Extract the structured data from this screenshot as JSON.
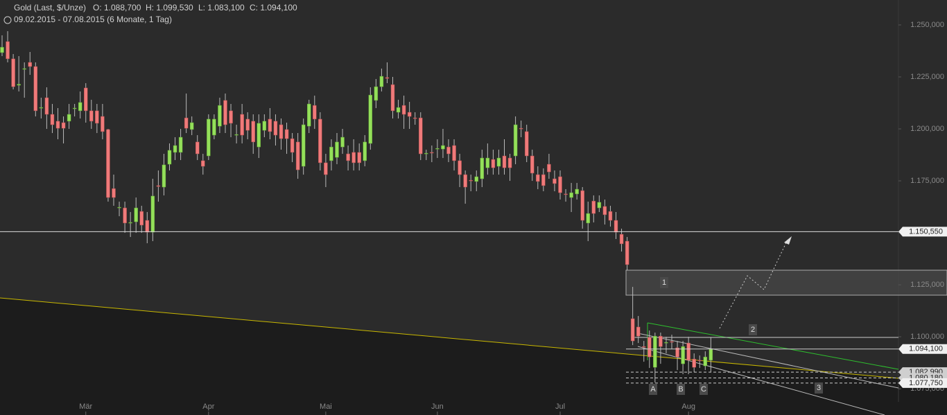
{
  "chart_data": {
    "type": "candlestick",
    "title": "Gold (Last, $/Unze)",
    "quote": [
      "O: 1.088,700",
      "H: 1.099,530",
      "L: 1.083,100",
      "C: 1.094,100"
    ],
    "subtitle": "09.02.2015 - 07.08.2015 (6 Monate, 1 Tag)",
    "categories": [
      null,
      null,
      null,
      null,
      null,
      null,
      null,
      null,
      null,
      null,
      null,
      null,
      null,
      null,
      null,
      "Mär",
      null,
      null,
      null,
      null,
      null,
      null,
      null,
      null,
      null,
      null,
      null,
      null,
      null,
      null,
      null,
      null,
      null,
      null,
      null,
      null,
      null,
      "Apr",
      null,
      null,
      null,
      null,
      null,
      null,
      null,
      null,
      null,
      null,
      null,
      null,
      null,
      null,
      null,
      null,
      null,
      null,
      null,
      null,
      "Mai",
      null,
      null,
      null,
      null,
      null,
      null,
      null,
      null,
      null,
      null,
      null,
      null,
      null,
      null,
      null,
      null,
      null,
      null,
      null,
      "Jun",
      null,
      null,
      null,
      null,
      null,
      null,
      null,
      null,
      null,
      null,
      null,
      null,
      null,
      null,
      null,
      null,
      null,
      null,
      null,
      null,
      null,
      "Jul",
      null,
      null,
      null,
      null,
      null,
      null,
      null,
      null,
      null,
      null,
      null,
      null,
      null,
      null,
      null,
      null,
      null,
      null,
      null,
      null,
      null,
      null,
      "Aug",
      null,
      null,
      null,
      null
    ],
    "open": [
      1236.7,
      1242,
      1233.7,
      1221,
      1228.7,
      1232,
      1230,
      1210,
      1215,
      1207,
      1203.7,
      1203,
      1203.7,
      1209.7,
      1208.7,
      1219.7,
      1208.7,
      1208.7,
      1206,
      1199.7,
      1171.3,
      1162,
      1162,
      1154.7,
      1155.3,
      1160.3,
      1156,
      1150.3,
      1172.7,
      1172,
      1183,
      1188.7,
      1188.7,
      1205.3,
      1199.7,
      1193.7,
      1184.7,
      1187,
      1197,
      1201.3,
      1213.7,
      1208.7,
      1197,
      1207,
      1204.7,
      1203.7,
      1191.3,
      1199.3,
      1204.7,
      1203.7,
      1202,
      1199.7,
      1195.3,
      1193.7,
      1182,
      1201.3,
      1211.3,
      1204.7,
      1183.7,
      1184.7,
      1186.3,
      1191.3,
      1188,
      1188.7,
      1188.7,
      1184.7,
      1193,
      1213.7,
      1220.3,
      1224.7,
      1221.3,
      1208,
      1211.3,
      1208,
      1205.3,
      1205.3,
      1188,
      1188.7,
      1190.3,
      1190.3,
      1191.3,
      1192,
      1184.7,
      1178,
      1175.3,
      1174.7,
      1176,
      1181.3,
      1185.3,
      1182,
      1187,
      1186,
      1187,
      1200.3,
      1198.7,
      1187,
      1178,
      1178,
      1183,
      1176,
      1177,
      1168.7,
      1167,
      1168.7,
      1170.3,
      1154.7,
      1165.3,
      1162,
      1162.7,
      1160.3,
      1156,
      1149.3,
      1146,
      1108.7,
      1104.7,
      1095.3,
      1099.7,
      1085.3,
      1100.3,
      1097,
      1097.7,
      1094.7,
      1087,
      1097,
      1089.3,
      1088.7,
      1086,
      1088.7
    ],
    "high": [
      1245,
      1247,
      1236,
      1235,
      1232,
      1237,
      1232,
      1215,
      1220,
      1212,
      1210,
      1206,
      1212,
      1212,
      1218,
      1222,
      1214,
      1212,
      1212,
      1200,
      1178,
      1165,
      1165,
      1160,
      1167,
      1163,
      1160,
      1176,
      1180,
      1188,
      1193,
      1196,
      1200,
      1217,
      1206,
      1197,
      1188,
      1207,
      1207,
      1215,
      1217,
      1212,
      1202,
      1212,
      1208,
      1207,
      1207,
      1207,
      1210,
      1207,
      1205,
      1203,
      1198,
      1198,
      1205,
      1214,
      1216,
      1208,
      1188,
      1195,
      1198,
      1200,
      1192,
      1195,
      1193,
      1197,
      1220,
      1224,
      1229,
      1232,
      1225,
      1214,
      1216,
      1213,
      1208,
      1208,
      1190,
      1192,
      1195,
      1200,
      1195,
      1195,
      1188,
      1180,
      1178,
      1180,
      1190,
      1193,
      1190,
      1190,
      1195,
      1188,
      1206,
      1204,
      1202,
      1190,
      1182,
      1181,
      1188,
      1180,
      1180,
      1171,
      1174,
      1174,
      1172,
      1165,
      1168,
      1168,
      1166,
      1163,
      1160,
      1152,
      1148,
      1124,
      1110,
      1098,
      1103,
      1102,
      1102,
      1100,
      1101,
      1098,
      1098,
      1100,
      1092,
      1091,
      1093,
      1099.53
    ],
    "low": [
      1235,
      1232,
      1219,
      1218,
      1215,
      1226,
      1206,
      1205,
      1200,
      1198,
      1195,
      1193,
      1200,
      1206,
      1205,
      1203,
      1200,
      1198,
      1195,
      1165,
      1163,
      1158,
      1150,
      1148,
      1150,
      1150,
      1145,
      1146,
      1165,
      1168,
      1180,
      1185,
      1185,
      1198,
      1197,
      1185,
      1178,
      1185,
      1195,
      1198,
      1198,
      1196,
      1193,
      1193,
      1195,
      1188,
      1186,
      1196,
      1195,
      1192,
      1190,
      1188,
      1184,
      1176,
      1178,
      1198,
      1200,
      1180,
      1172,
      1180,
      1183,
      1188,
      1180,
      1180,
      1180,
      1182,
      1190,
      1210,
      1218,
      1222,
      1205,
      1205,
      1200,
      1200,
      1202,
      1185,
      1185,
      1184,
      1186,
      1186,
      1184,
      1180,
      1172,
      1164,
      1170,
      1170,
      1172,
      1178,
      1178,
      1178,
      1178,
      1175,
      1183,
      1196,
      1184,
      1175,
      1171,
      1170,
      1176,
      1170,
      1166,
      1165,
      1160,
      1166,
      1152,
      1146,
      1155,
      1160,
      1154,
      1153,
      1147,
      1141,
      1132,
      1096,
      1097,
      1088,
      1085,
      1078,
      1087,
      1092,
      1094,
      1084,
      1082,
      1082,
      1083,
      1085,
      1084,
      1083.1
    ],
    "close": [
      1239.3,
      1233.7,
      1220.3,
      1221.5,
      1229,
      1230,
      1208.7,
      1210.3,
      1207,
      1202,
      1200.3,
      1200.3,
      1207,
      1210,
      1212.7,
      1208.7,
      1203.7,
      1202.7,
      1198.7,
      1167,
      1167,
      1162.3,
      1154.7,
      1155,
      1162,
      1153.7,
      1150.3,
      1167.7,
      1172.3,
      1182.7,
      1189.7,
      1192,
      1196,
      1200.3,
      1203,
      1188,
      1182,
      1204.7,
      1204.7,
      1211.3,
      1202,
      1202.7,
      1197.3,
      1197,
      1199.3,
      1193.7,
      1202.7,
      1203.7,
      1198.7,
      1197,
      1195.3,
      1195.3,
      1188.7,
      1180.3,
      1202,
      1212,
      1204.7,
      1183.7,
      1178,
      1191.3,
      1193.7,
      1196,
      1184.7,
      1183.7,
      1183.7,
      1193.7,
      1216.3,
      1220.3,
      1225.3,
      1224.3,
      1208.7,
      1210.3,
      1207,
      1206,
      1205,
      1188,
      1188.3,
      1188.5,
      1190.6,
      1192,
      1188,
      1184.7,
      1178,
      1172,
      1175,
      1177,
      1186,
      1186,
      1181.3,
      1186,
      1181.3,
      1181.3,
      1202,
      1200,
      1187,
      1178.7,
      1174.7,
      1172.7,
      1179.3,
      1173.7,
      1169.3,
      1168.5,
      1169.3,
      1171,
      1156,
      1159.3,
      1159.3,
      1164.7,
      1158.7,
      1156,
      1150.3,
      1144.7,
      1134.7,
      1098,
      1100.3,
      1095,
      1090.3,
      1100.3,
      1095.3,
      1097.3,
      1097.5,
      1090.3,
      1095.3,
      1088.7,
      1085.3,
      1088.5,
      1090.3,
      1094.1
    ],
    "up_color": "#94e05a",
    "down_color": "#f07a7a",
    "ylim": [
      1068.7,
      1262
    ],
    "yticks": [
      {
        "value": 1075,
        "label": "1.075,000"
      },
      {
        "value": 1100,
        "label": "1.100,000"
      },
      {
        "value": 1125,
        "label": "1.125,000"
      },
      {
        "value": 1150,
        "label": "1.150,000"
      },
      {
        "value": 1175,
        "label": "1.175,000"
      },
      {
        "value": 1200,
        "label": "1.200,000"
      },
      {
        "value": 1225,
        "label": "1.225,000"
      },
      {
        "value": 1250,
        "label": "1.250,000"
      }
    ],
    "levels": [
      {
        "value": 1150.55,
        "label": "1.150,550"
      },
      {
        "value": 1094.1,
        "label": "1.094,100"
      },
      {
        "value": 1082.99,
        "label": "1.082,990"
      },
      {
        "value": 1080.18,
        "label": "1.080,180"
      },
      {
        "value": 1077.75,
        "label": "1.077,750"
      }
    ],
    "annotations": [
      "1",
      "2",
      "3",
      "A",
      "B",
      "C"
    ]
  }
}
